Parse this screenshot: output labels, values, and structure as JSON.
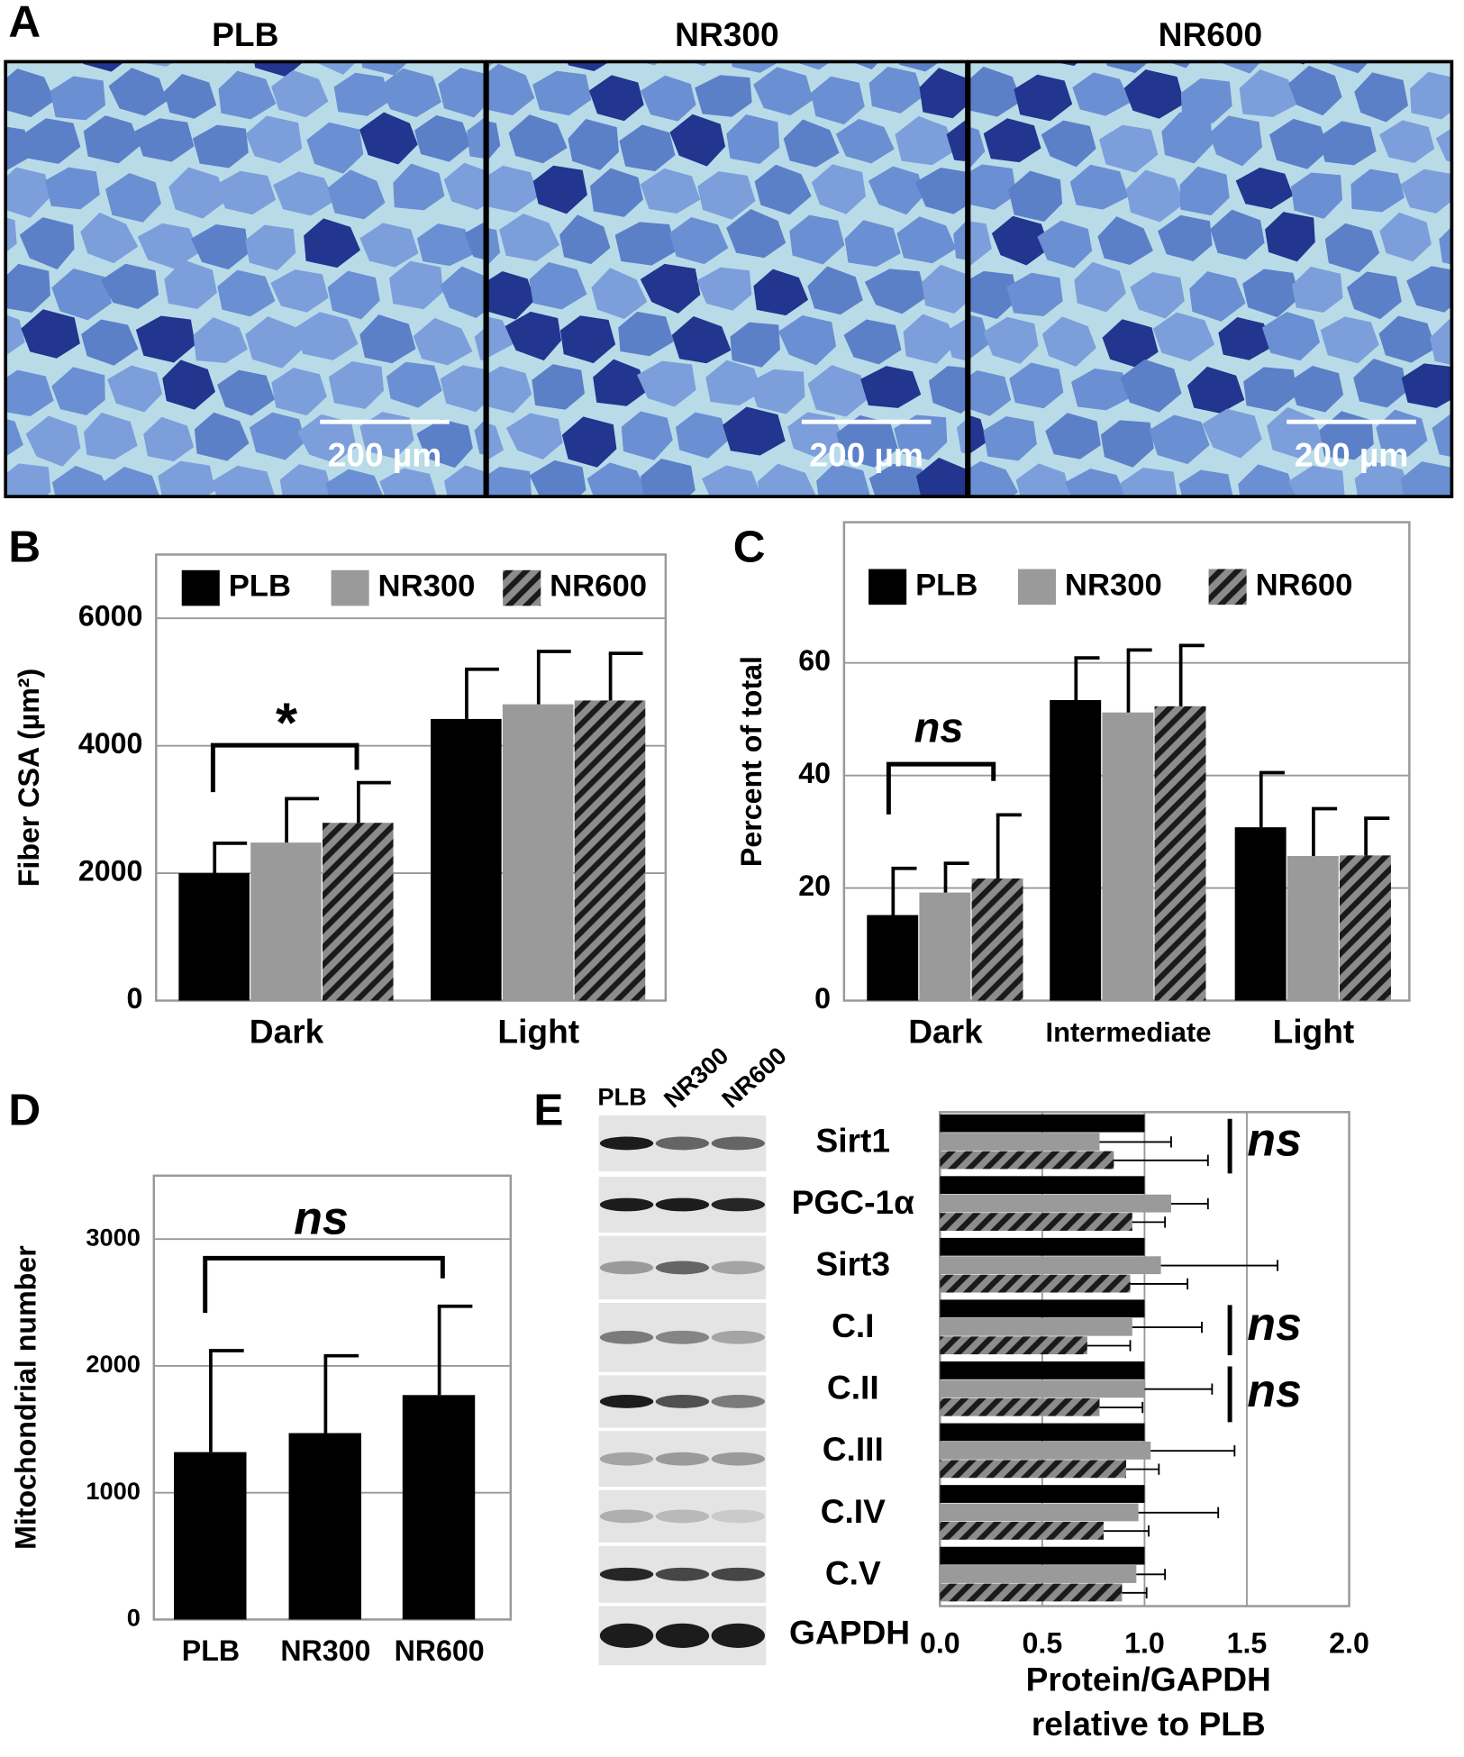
{
  "figure": {
    "panel_labels": [
      "A",
      "B",
      "C",
      "D",
      "E"
    ],
    "micrographs": {
      "titles": [
        "PLB",
        "NR300",
        "NR600"
      ],
      "scale_bar": "200 µm"
    },
    "blot": {
      "lanes": [
        "PLB",
        "NR300",
        "NR600"
      ],
      "loading_control": "GAPDH"
    }
  },
  "chart_data": [
    {
      "type": "bar",
      "ylabel": "Fiber CSA (µm²)",
      "categories": [
        "Dark",
        "Light"
      ],
      "series": [
        {
          "name": "PLB",
          "color": "#000000",
          "values": [
            2000,
            4420
          ],
          "errors": [
            470,
            780
          ]
        },
        {
          "name": "NR300",
          "color": "#9a9a9a",
          "values": [
            2480,
            4650
          ],
          "errors": [
            690,
            830
          ]
        },
        {
          "name": "NR600",
          "color": "#555555",
          "hatch": true,
          "values": [
            2790,
            4710
          ],
          "errors": [
            630,
            740
          ]
        }
      ],
      "ylim": [
        0,
        7000
      ],
      "yticks": [
        0,
        2000,
        4000,
        6000
      ],
      "grid": true,
      "legend": "top",
      "annotations": [
        "*"
      ]
    },
    {
      "type": "bar",
      "ylabel": "Percent of total",
      "categories": [
        "Dark",
        "Intermediate",
        "Light"
      ],
      "series": [
        {
          "name": "PLB",
          "color": "#000000",
          "values": [
            15.2,
            53.4,
            30.8
          ],
          "errors": [
            8.3,
            7.5,
            9.7
          ]
        },
        {
          "name": "NR300",
          "color": "#9a9a9a",
          "values": [
            19.2,
            51.2,
            25.7
          ],
          "errors": [
            5.2,
            11.1,
            8.4
          ]
        },
        {
          "name": "NR600",
          "color": "#555555",
          "hatch": true,
          "values": [
            21.7,
            52.3,
            25.8
          ],
          "errors": [
            11.3,
            10.8,
            6.6
          ]
        }
      ],
      "ylim": [
        0,
        85
      ],
      "yticks": [
        0,
        20,
        40,
        60
      ],
      "grid": true,
      "legend": "top",
      "annotations": [
        "ns"
      ]
    },
    {
      "type": "bar",
      "ylabel": "Mitochondrial number",
      "categories": [
        "PLB",
        "NR300",
        "NR600"
      ],
      "values": [
        1320,
        1470,
        1770
      ],
      "errors": [
        800,
        610,
        700
      ],
      "color": "#000000",
      "ylim": [
        0,
        3500
      ],
      "yticks": [
        0,
        1000,
        2000,
        3000
      ],
      "grid": true,
      "annotations": [
        "ns"
      ]
    },
    {
      "type": "hbar",
      "xlabel": [
        "Protein/GAPDH",
        "relative to PLB"
      ],
      "categories": [
        "Sirt1",
        "PGC-1α",
        "Sirt3",
        "C.I",
        "C.II",
        "C.III",
        "C.IV",
        "C.V"
      ],
      "series": [
        {
          "color": "#000000",
          "values": [
            1,
            1,
            1,
            1,
            1,
            1,
            1,
            1
          ]
        },
        {
          "color": "#9a9a9a",
          "values": [
            0.78,
            1.13,
            1.08,
            0.94,
            1.0,
            1.03,
            0.97,
            0.96
          ],
          "errors": [
            0.35,
            0.18,
            0.57,
            0.34,
            0.33,
            0.41,
            0.39,
            0.14
          ]
        },
        {
          "color": "#555555",
          "hatch": true,
          "values": [
            0.85,
            0.94,
            0.93,
            0.72,
            0.78,
            0.91,
            0.8,
            0.89
          ],
          "errors": [
            0.46,
            0.16,
            0.28,
            0.21,
            0.21,
            0.16,
            0.22,
            0.12
          ]
        }
      ],
      "xlim": [
        0,
        2
      ],
      "xticks": [
        {
          "value": 0,
          "label": "0.0"
        },
        0.5,
        {
          "value": 1,
          "label": "1.0"
        },
        1.5,
        {
          "value": 2,
          "label": "2.0"
        }
      ],
      "grid": true,
      "annotations": [
        "ns",
        "ns",
        "ns"
      ]
    }
  ]
}
